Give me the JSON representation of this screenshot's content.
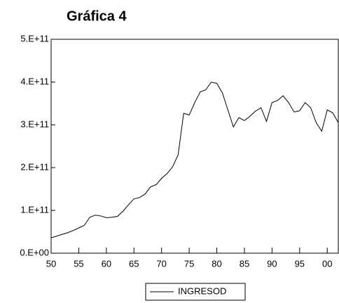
{
  "chart_data": {
    "type": "line",
    "title": "Gráfica 4",
    "x": [
      1950,
      1951,
      1952,
      1953,
      1954,
      1955,
      1956,
      1957,
      1958,
      1959,
      1960,
      1961,
      1962,
      1963,
      1964,
      1965,
      1966,
      1967,
      1968,
      1969,
      1970,
      1971,
      1972,
      1973,
      1974,
      1975,
      1976,
      1977,
      1978,
      1979,
      1980,
      1981,
      1982,
      1983,
      1984,
      1985,
      1986,
      1987,
      1988,
      1989,
      1990,
      1991,
      1992,
      1993,
      1994,
      1995,
      1996,
      1997,
      1998,
      1999,
      2000,
      2001,
      2002
    ],
    "series": [
      {
        "name": "INGRESOD",
        "color": "#000000",
        "values": [
          36000000000,
          40000000000,
          44000000000,
          48000000000,
          53000000000,
          59000000000,
          65000000000,
          84000000000,
          89000000000,
          87000000000,
          83000000000,
          84000000000,
          86000000000,
          98000000000,
          113000000000,
          127000000000,
          130000000000,
          138000000000,
          155000000000,
          160000000000,
          175000000000,
          186000000000,
          202000000000,
          230000000000,
          327000000000,
          323000000000,
          352000000000,
          377000000000,
          382000000000,
          400000000000,
          397000000000,
          375000000000,
          335000000000,
          295000000000,
          317000000000,
          310000000000,
          320000000000,
          332000000000,
          340000000000,
          308000000000,
          352000000000,
          357000000000,
          368000000000,
          352000000000,
          330000000000,
          333000000000,
          352000000000,
          340000000000,
          305000000000,
          285000000000,
          335000000000,
          328000000000,
          305000000000
        ]
      }
    ],
    "xlim": [
      1950,
      2002
    ],
    "xticks": [
      {
        "value": 1950,
        "label": "50"
      },
      {
        "value": 1955,
        "label": "55"
      },
      {
        "value": 1960,
        "label": "60"
      },
      {
        "value": 1965,
        "label": "65"
      },
      {
        "value": 1970,
        "label": "70"
      },
      {
        "value": 1975,
        "label": "75"
      },
      {
        "value": 1980,
        "label": "80"
      },
      {
        "value": 1985,
        "label": "85"
      },
      {
        "value": 1990,
        "label": "90"
      },
      {
        "value": 1995,
        "label": "95"
      },
      {
        "value": 2000,
        "label": "00"
      }
    ],
    "ylim": [
      0,
      500000000000
    ],
    "yticks": [
      {
        "value": 0,
        "label": "0.E+00"
      },
      {
        "value": 100000000000,
        "label": "1.E+11"
      },
      {
        "value": 200000000000,
        "label": "2.E+11"
      },
      {
        "value": 300000000000,
        "label": "3.E+11"
      },
      {
        "value": 400000000000,
        "label": "4.E+11"
      },
      {
        "value": 500000000000,
        "label": "5.E+11"
      }
    ],
    "grid": false
  }
}
